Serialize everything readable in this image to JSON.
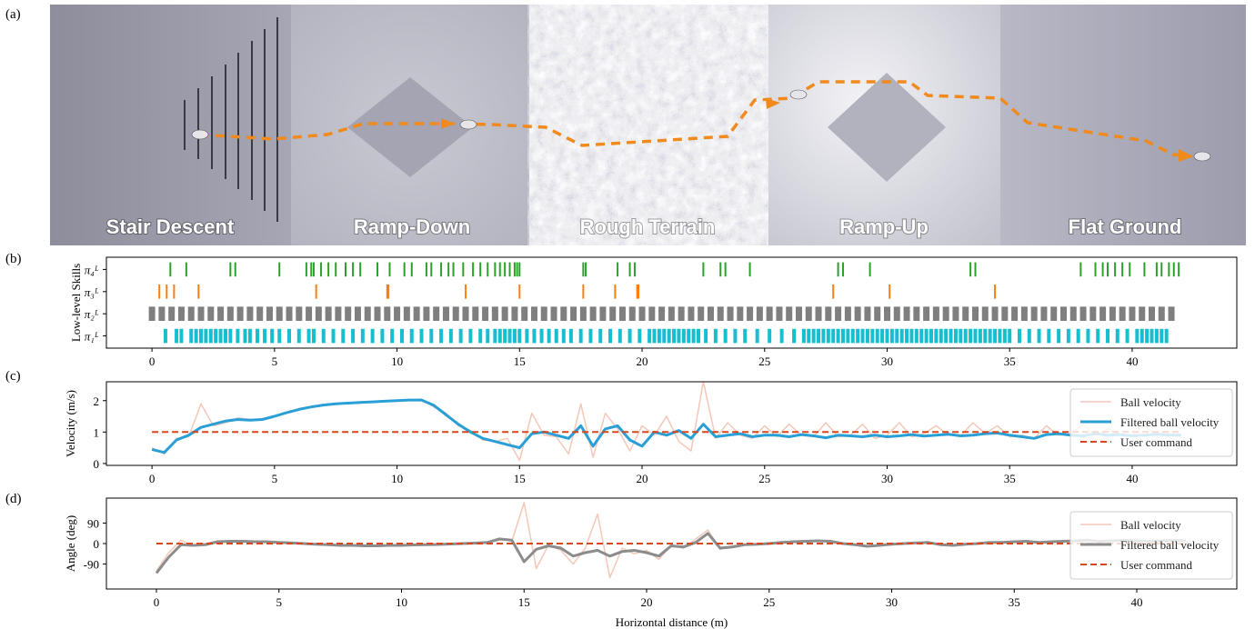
{
  "panel_labels": [
    "(a)",
    "(b)",
    "(c)",
    "(d)"
  ],
  "terrain_labels": [
    "Stair Descent",
    "Ramp-Down",
    "Rough Terrain",
    "Ramp-Up",
    "Flat Ground"
  ],
  "chart_data": [
    {
      "type": "event",
      "y_label": "Low-level Skills",
      "xlim": [
        -1.86,
        44.27
      ],
      "xticks": [
        0,
        5,
        10,
        15,
        20,
        25,
        30,
        35,
        40
      ],
      "series": [
        {
          "name": "π₄ᴸ",
          "color": "#2ca02c",
          "values": [
            0.75,
            1.4,
            3.2,
            3.4,
            5.2,
            6.3,
            6.5,
            6.6,
            6.9,
            7.2,
            7.5,
            7.9,
            8.2,
            8.5,
            9.2,
            9.7,
            10.3,
            10.6,
            11.2,
            11.4,
            11.8,
            12.1,
            12.3,
            12.7,
            13.1,
            13.4,
            13.7,
            14.0,
            14.2,
            14.4,
            14.6,
            14.8,
            14.9,
            15.0,
            17.6,
            17.7,
            19.0,
            19.5,
            19.7,
            22.5,
            23.2,
            23.4,
            24.4,
            28.0,
            28.2,
            29.3,
            33.4,
            33.6,
            37.9,
            38.5,
            38.8,
            39.0,
            39.3,
            39.6,
            39.9,
            40.5,
            41.0,
            41.2,
            41.5,
            41.7,
            41.9
          ]
        },
        {
          "name": "π₃ᴸ",
          "color": "#ff7f0e",
          "values": [
            0.3,
            0.6,
            0.9,
            1.9,
            6.7,
            9.6,
            9.65,
            12.8,
            15.0,
            17.6,
            18.9,
            19.8,
            19.85,
            27.8,
            30.1,
            34.4
          ]
        },
        {
          "name": "π₂ᴸ",
          "color": "#7f7f7f",
          "values": [
            0,
            0.4,
            0.8,
            1.2,
            1.6,
            2.0,
            2.4,
            2.8,
            3.2,
            3.6,
            4.0,
            4.4,
            4.8,
            5.2,
            5.6,
            6.0,
            6.4,
            6.8,
            7.2,
            7.6,
            8.0,
            8.4,
            8.8,
            9.2,
            9.6,
            10.0,
            10.4,
            10.8,
            11.2,
            11.6,
            12.0,
            12.4,
            12.8,
            13.2,
            13.6,
            14.0,
            14.4,
            14.8,
            15.2,
            15.6,
            16.0,
            16.4,
            16.8,
            17.2,
            17.6,
            18.0,
            18.4,
            18.8,
            19.2,
            19.6,
            20.0,
            20.4,
            20.8,
            21.2,
            21.6,
            22.0,
            22.4,
            22.8,
            23.2,
            23.6,
            24.0,
            24.4,
            24.8,
            25.2,
            25.6,
            26.0,
            26.4,
            26.8,
            27.2,
            27.6,
            28.0,
            28.4,
            28.8,
            29.2,
            29.6,
            30.0,
            30.4,
            30.8,
            31.2,
            31.6,
            32.0,
            32.4,
            32.8,
            33.2,
            33.6,
            34.0,
            34.4,
            34.8,
            35.2,
            35.6,
            36.0,
            36.4,
            36.8,
            37.2,
            37.6,
            38.0,
            38.4,
            38.8,
            39.2,
            39.6,
            40.0,
            40.4,
            40.8,
            41.2,
            41.6
          ]
        },
        {
          "name": "π₁ᴸ",
          "color": "#17becf",
          "values": [
            0.55,
            1.0,
            1.2,
            1.6,
            1.8,
            2.0,
            2.2,
            2.4,
            2.6,
            2.8,
            3.0,
            3.2,
            3.5,
            3.8,
            4.0,
            4.3,
            4.6,
            4.9,
            5.2,
            5.6,
            6.0,
            6.4,
            6.6,
            7.0,
            7.4,
            7.8,
            8.2,
            8.6,
            9.0,
            9.4,
            9.8,
            10.2,
            10.6,
            11.0,
            11.4,
            11.8,
            12.2,
            12.6,
            13.0,
            13.4,
            13.7,
            14.0,
            14.2,
            14.4,
            14.6,
            14.8,
            15.0,
            15.3,
            15.6,
            15.9,
            16.2,
            16.5,
            16.8,
            17.1,
            17.5,
            17.9,
            18.3,
            18.7,
            19.1,
            19.5,
            19.9,
            20.3,
            20.5,
            20.7,
            20.9,
            21.1,
            21.3,
            21.5,
            21.7,
            21.9,
            22.1,
            22.3,
            22.6,
            23.0,
            23.4,
            23.8,
            24.2,
            24.7,
            25.2,
            25.7,
            26.2,
            26.6,
            26.8,
            27.0,
            27.2,
            27.4,
            27.6,
            27.8,
            28.0,
            28.2,
            28.4,
            28.6,
            28.8,
            29.0,
            29.2,
            29.4,
            29.6,
            29.8,
            30.0,
            30.2,
            30.4,
            30.6,
            30.8,
            31.0,
            31.2,
            31.4,
            31.6,
            31.8,
            32.0,
            32.2,
            32.4,
            32.6,
            32.8,
            33.0,
            33.2,
            33.4,
            33.6,
            33.8,
            34.0,
            34.2,
            34.4,
            34.6,
            34.8,
            35.0,
            35.4,
            35.8,
            36.2,
            36.6,
            37.0,
            37.4,
            37.8,
            38.2,
            38.6,
            39.0,
            39.4,
            39.8,
            40.2,
            40.4,
            40.6,
            40.8,
            41.0,
            41.2,
            41.4
          ]
        }
      ]
    },
    {
      "type": "line",
      "y_label": "Velocity (m/s)",
      "xlim": [
        -1.86,
        44.27
      ],
      "xticks": [
        0,
        5,
        10,
        15,
        20,
        25,
        30,
        35,
        40
      ],
      "ylim": [
        -0.06,
        2.6
      ],
      "yticks": [
        0,
        1,
        2
      ],
      "x": [
        0,
        0.5,
        1,
        1.5,
        2,
        2.5,
        3,
        3.5,
        4,
        4.5,
        5,
        5.5,
        6,
        6.5,
        7,
        7.5,
        8,
        8.5,
        9,
        9.5,
        10,
        10.5,
        11,
        11.5,
        12,
        12.5,
        13,
        13.5,
        14,
        14.5,
        15,
        15.5,
        16,
        16.5,
        17,
        17.5,
        18,
        18.5,
        19,
        19.5,
        20,
        20.5,
        21,
        21.5,
        22,
        22.5,
        23,
        23.5,
        24,
        24.5,
        25,
        25.5,
        26,
        26.5,
        27,
        27.5,
        28,
        28.5,
        29,
        29.5,
        30,
        30.5,
        31,
        31.5,
        32,
        32.5,
        33,
        33.5,
        34,
        34.5,
        35,
        35.5,
        36,
        36.5,
        37,
        37.5,
        38,
        38.5,
        39,
        39.5,
        40,
        40.5,
        41,
        41.5,
        42
      ],
      "series": [
        {
          "name": "Ball velocity",
          "color": "#f4c7b8",
          "width": 1.5,
          "values": [
            0.5,
            0.3,
            0.8,
            0.85,
            1.9,
            1.2,
            1.3,
            1.45,
            1.4,
            1.38,
            1.5,
            1.6,
            1.75,
            1.78,
            1.88,
            1.9,
            1.92,
            1.95,
            1.95,
            2.0,
            2.0,
            2.0,
            2.05,
            1.8,
            1.6,
            1.2,
            1.05,
            0.75,
            0.7,
            0.8,
            0.1,
            1.6,
            0.9,
            0.85,
            0.3,
            1.9,
            0.2,
            1.6,
            1.1,
            0.4,
            1.2,
            0.9,
            1.5,
            0.7,
            0.4,
            2.6,
            0.8,
            1.3,
            0.9,
            0.8,
            1.2,
            0.85,
            1.25,
            0.9,
            0.85,
            1.3,
            0.85,
            0.9,
            1.25,
            0.8,
            0.9,
            1.3,
            0.85,
            0.95,
            1.2,
            0.9,
            0.88,
            1.3,
            0.95,
            1.2,
            0.85,
            0.9,
            0.8,
            1.2,
            0.9,
            0.95,
            1.25,
            0.9,
            1.1,
            0.9,
            0.88,
            1.2,
            0.9,
            0.95,
            0.9
          ]
        },
        {
          "name": "Filtered ball velocity",
          "color": "#2a9fd6",
          "width": 3,
          "values": [
            0.45,
            0.35,
            0.75,
            0.9,
            1.15,
            1.25,
            1.35,
            1.4,
            1.38,
            1.4,
            1.5,
            1.62,
            1.72,
            1.8,
            1.86,
            1.9,
            1.92,
            1.94,
            1.96,
            1.98,
            2.0,
            2.02,
            2.02,
            1.85,
            1.55,
            1.25,
            1.0,
            0.8,
            0.7,
            0.6,
            0.5,
            0.95,
            1.0,
            0.9,
            0.8,
            1.2,
            0.55,
            1.1,
            1.2,
            0.75,
            0.55,
            1.0,
            0.9,
            1.05,
            0.8,
            1.25,
            0.85,
            0.9,
            0.95,
            0.85,
            0.9,
            0.9,
            0.85,
            0.92,
            0.88,
            0.82,
            0.9,
            0.88,
            0.85,
            0.9,
            0.85,
            0.88,
            0.92,
            0.87,
            0.9,
            0.93,
            0.88,
            0.9,
            0.95,
            0.97,
            0.9,
            0.85,
            0.8,
            0.92,
            0.95,
            0.9,
            0.88,
            0.95,
            0.9,
            0.92,
            0.88,
            0.9,
            0.93,
            0.9,
            0.9
          ]
        },
        {
          "name": "User command",
          "color": "#d9461c",
          "width": 2,
          "dash": true,
          "x": [
            0,
            42
          ],
          "values": [
            1,
            1
          ]
        }
      ]
    },
    {
      "type": "line",
      "y_label": "Angle (deg)",
      "x_label": "Horizontal distance (m)",
      "xlim": [
        -2.04,
        44.08
      ],
      "xticks": [
        0,
        5,
        10,
        15,
        20,
        25,
        30,
        35,
        40
      ],
      "ylim": [
        -200,
        200
      ],
      "yticks": [
        -90,
        0,
        90
      ],
      "x": [
        0,
        0.5,
        1,
        1.5,
        2,
        2.5,
        3,
        3.5,
        4,
        4.5,
        5,
        5.5,
        6,
        6.5,
        7,
        7.5,
        8,
        8.5,
        9,
        9.5,
        10,
        10.5,
        11,
        11.5,
        12,
        12.5,
        13,
        13.5,
        14,
        14.5,
        15,
        15.5,
        16,
        16.5,
        17,
        17.5,
        18,
        18.5,
        19,
        19.5,
        20,
        20.5,
        21,
        21.5,
        22,
        22.5,
        23,
        23.5,
        24,
        24.5,
        25,
        25.5,
        26,
        26.5,
        27,
        27.5,
        28,
        28.5,
        29,
        29.5,
        30,
        30.5,
        31,
        31.5,
        32,
        32.5,
        33,
        33.5,
        34,
        34.5,
        35,
        35.5,
        36,
        36.5,
        37,
        37.5,
        38,
        38.5,
        39,
        39.5,
        40,
        40.5,
        41,
        41.5,
        42
      ],
      "series": [
        {
          "name": "Ball velocity",
          "color": "#f4c7b8",
          "width": 1.5,
          "values": [
            -120,
            -40,
            15,
            -10,
            0,
            12,
            8,
            12,
            6,
            10,
            5,
            4,
            2,
            -3,
            -4,
            -9,
            -7,
            -11,
            -9,
            -8,
            -7,
            -6,
            -4,
            -5,
            -1,
            0,
            3,
            6,
            25,
            10,
            180,
            -110,
            -5,
            -30,
            -90,
            -20,
            130,
            -150,
            -20,
            -45,
            -30,
            -70,
            -5,
            -20,
            20,
            60,
            -25,
            -10,
            -3,
            -5,
            2,
            6,
            7,
            12,
            13,
            8,
            2,
            -6,
            -10,
            -9,
            -2,
            1,
            4,
            6,
            -4,
            -9,
            -2,
            1,
            6,
            4,
            9,
            11,
            4,
            9,
            9,
            14,
            14,
            10,
            12,
            16,
            11,
            9,
            13,
            14,
            12
          ]
        },
        {
          "name": "Filtered ball velocity",
          "color": "#8c8c8c",
          "width": 3,
          "values": [
            -130,
            -60,
            -5,
            -8,
            -5,
            8,
            10,
            10,
            8,
            8,
            5,
            3,
            0,
            -3,
            -5,
            -8,
            -8,
            -10,
            -10,
            -8,
            -8,
            -6,
            -5,
            -4,
            -2,
            0,
            2,
            5,
            20,
            15,
            -80,
            -25,
            -10,
            -20,
            -55,
            -40,
            -30,
            -55,
            -35,
            -30,
            -40,
            -55,
            -10,
            -15,
            5,
            45,
            -20,
            -15,
            -5,
            -3,
            0,
            5,
            8,
            10,
            12,
            10,
            0,
            -5,
            -12,
            -8,
            -3,
            0,
            3,
            5,
            -5,
            -8,
            -3,
            0,
            5,
            5,
            8,
            10,
            5,
            8,
            10,
            12,
            15,
            10,
            12,
            15,
            12,
            10,
            12,
            15,
            12
          ]
        },
        {
          "name": "User command",
          "color": "#d9461c",
          "width": 2,
          "dash": true,
          "x": [
            0,
            42
          ],
          "values": [
            0,
            0
          ]
        }
      ]
    }
  ]
}
